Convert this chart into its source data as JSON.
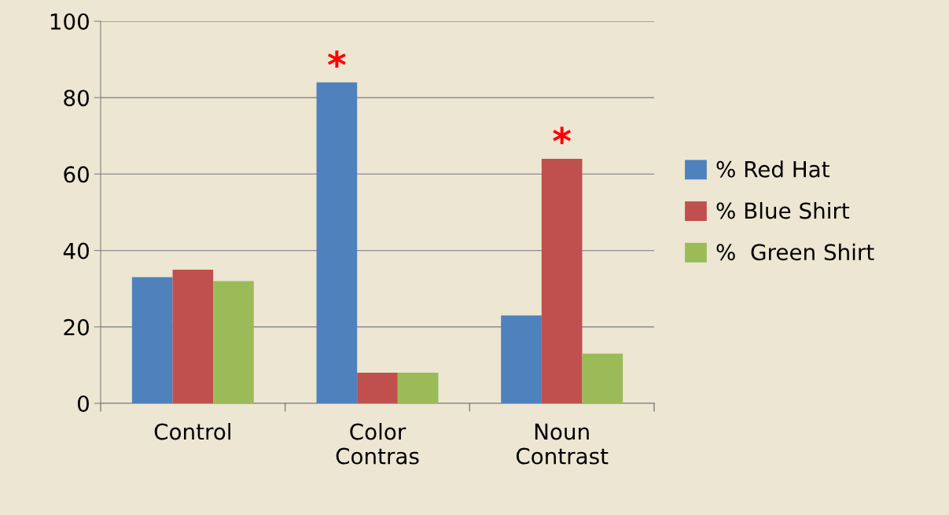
{
  "chart_data": {
    "type": "bar",
    "categories": [
      "Control",
      "Color\nContras",
      "Noun\nContrast"
    ],
    "series": [
      {
        "name": "% Red Hat",
        "color": "#4f81bd",
        "values": [
          33,
          84,
          23
        ]
      },
      {
        "name": "% Blue Shirt",
        "color": "#c0504d",
        "values": [
          35,
          8,
          64
        ]
      },
      {
        "name": "%  Green Shirt",
        "color": "#9bbb59",
        "values": [
          32,
          8,
          13
        ]
      }
    ],
    "ylim": [
      0,
      100
    ],
    "yticks": [
      0,
      20,
      40,
      60,
      80,
      100
    ],
    "grid": "y",
    "legend": "right",
    "annotations": [
      "*",
      "*"
    ]
  }
}
